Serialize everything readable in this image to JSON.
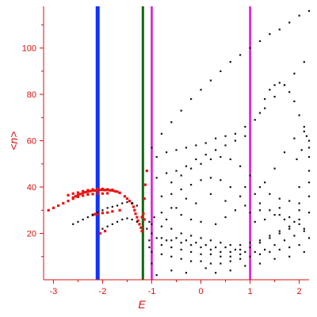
{
  "chart_data": {
    "type": "scatter",
    "title": "",
    "xlabel": "E",
    "ylabel": "<n>",
    "xlim": [
      -3.2,
      2.2
    ],
    "ylim": [
      0,
      118
    ],
    "x_ticks": [
      -3,
      -2,
      -1,
      0,
      1,
      2
    ],
    "x_tick_labels": [
      "-3",
      "-2",
      "-1",
      "0",
      "1",
      "2"
    ],
    "y_ticks": [
      20,
      40,
      60,
      80,
      100
    ],
    "y_tick_labels": [
      "20",
      "40",
      "60",
      "80",
      "100"
    ],
    "grid": false,
    "legend": "none",
    "colors": {
      "axis": "#dd1111",
      "ground_band": "#ee1111",
      "spectrum_points": "#111111",
      "line_blue": "#1133ff",
      "line_green": "#116611",
      "line_magenta": "#dd11dd"
    },
    "vertical_lines": [
      {
        "x": -2.1,
        "color": "#1133ff"
      },
      {
        "x": -1.18,
        "color": "#116611"
      },
      {
        "x": -1.0,
        "color": "#dd11dd"
      },
      {
        "x": 1.0,
        "color": "#dd11dd"
      }
    ],
    "series": [
      {
        "color": "#ee1111",
        "points": [
          [
            -3.1,
            30
          ],
          [
            -3.0,
            31
          ],
          [
            -2.9,
            32
          ],
          [
            -2.8,
            33
          ],
          [
            -2.7,
            34
          ],
          [
            -2.6,
            35
          ],
          [
            -2.55,
            36
          ],
          [
            -2.5,
            36.5
          ],
          [
            -2.45,
            37
          ],
          [
            -2.4,
            37.5
          ],
          [
            -2.35,
            37.8
          ],
          [
            -2.3,
            38
          ],
          [
            -2.25,
            38.3
          ],
          [
            -2.2,
            38.5
          ],
          [
            -2.15,
            38.5
          ],
          [
            -2.1,
            38.6
          ],
          [
            -2.05,
            38.8
          ],
          [
            -2.0,
            38.8
          ],
          [
            -1.95,
            38.7
          ],
          [
            -1.9,
            38.8
          ],
          [
            -1.85,
            38.6
          ],
          [
            -1.8,
            38.5
          ],
          [
            -1.75,
            38.2
          ],
          [
            -1.7,
            38
          ],
          [
            -1.65,
            37.5
          ],
          [
            -2.7,
            36.5
          ],
          [
            -2.6,
            37.2
          ],
          [
            -2.5,
            37.6
          ],
          [
            -2.4,
            38.2
          ],
          [
            -2.3,
            38.6
          ],
          [
            -2.2,
            39
          ],
          [
            -2.1,
            39.2
          ],
          [
            -2.0,
            39.2
          ],
          [
            -1.9,
            39
          ],
          [
            -1.8,
            38.8
          ],
          [
            -2.6,
            35.5
          ],
          [
            -2.5,
            35.8
          ],
          [
            -2.4,
            36.3
          ],
          [
            -2.3,
            36.8
          ],
          [
            -2.2,
            37
          ],
          [
            -2.1,
            37.2
          ],
          [
            -2.0,
            37.2
          ],
          [
            -1.9,
            37.3
          ],
          [
            -2.2,
            28
          ],
          [
            -2.15,
            28.3
          ],
          [
            -2.1,
            28.5
          ],
          [
            -2.0,
            28.8
          ],
          [
            -1.9,
            29
          ],
          [
            -1.8,
            29.5
          ],
          [
            -1.65,
            30
          ],
          [
            -1.55,
            36
          ],
          [
            -1.5,
            35
          ],
          [
            -1.45,
            34
          ],
          [
            -1.4,
            33
          ],
          [
            -1.37,
            31.5
          ],
          [
            -1.35,
            30
          ],
          [
            -1.33,
            28.5
          ],
          [
            -1.3,
            27
          ],
          [
            -1.28,
            25.5
          ],
          [
            -1.25,
            24
          ],
          [
            -1.22,
            22.5
          ],
          [
            -1.2,
            21
          ],
          [
            -2.05,
            20
          ],
          [
            -1.95,
            21
          ],
          [
            -1.15,
            35
          ],
          [
            -1.13,
            41
          ],
          [
            -1.1,
            47
          ],
          [
            -1.2,
            27
          ],
          [
            -1.17,
            28.5
          ],
          [
            -1.15,
            26
          ]
        ]
      },
      {
        "color": "#111111",
        "points": [
          [
            -2.6,
            24
          ],
          [
            -2.5,
            25
          ],
          [
            -2.4,
            26
          ],
          [
            -2.3,
            27
          ],
          [
            -2.2,
            28
          ],
          [
            -2.1,
            29
          ],
          [
            -2.0,
            30
          ],
          [
            -1.9,
            31
          ],
          [
            -1.8,
            31.5
          ],
          [
            -1.7,
            32
          ],
          [
            -1.6,
            33
          ],
          [
            -1.5,
            33.5
          ],
          [
            -1.4,
            33
          ],
          [
            -1.3,
            32
          ],
          [
            -2.0,
            22
          ],
          [
            -1.9,
            23
          ],
          [
            -1.8,
            24
          ],
          [
            -1.7,
            25
          ],
          [
            -1.6,
            26
          ],
          [
            -1.5,
            26.5
          ],
          [
            -1.4,
            26
          ],
          [
            -1.3,
            25
          ],
          [
            -1.0,
            57
          ],
          [
            -0.8,
            63
          ],
          [
            -0.6,
            68
          ],
          [
            -0.4,
            73
          ],
          [
            -0.2,
            78
          ],
          [
            0.0,
            82
          ],
          [
            0.2,
            86
          ],
          [
            0.4,
            90
          ],
          [
            0.6,
            94
          ],
          [
            0.8,
            97
          ],
          [
            1.0,
            100
          ],
          [
            1.2,
            103
          ],
          [
            1.4,
            106
          ],
          [
            1.6,
            108
          ],
          [
            1.8,
            111
          ],
          [
            2.0,
            114
          ],
          [
            2.2,
            116
          ],
          [
            -0.9,
            53
          ],
          [
            -0.7,
            55
          ],
          [
            -0.5,
            56
          ],
          [
            -0.3,
            57
          ],
          [
            -0.1,
            58
          ],
          [
            0.1,
            59
          ],
          [
            0.3,
            61
          ],
          [
            0.5,
            62
          ],
          [
            0.7,
            63
          ],
          [
            0.9,
            66
          ],
          [
            1.1,
            69
          ],
          [
            1.3,
            74
          ],
          [
            1.5,
            79
          ],
          [
            1.7,
            84
          ],
          [
            1.9,
            89
          ],
          [
            2.1,
            94
          ],
          [
            -0.9,
            44
          ],
          [
            -0.7,
            46
          ],
          [
            -0.5,
            47
          ],
          [
            -0.3,
            49
          ],
          [
            -0.1,
            52
          ],
          [
            0.1,
            54
          ],
          [
            0.3,
            56
          ],
          [
            0.5,
            58
          ],
          [
            0.7,
            60
          ],
          [
            0.9,
            62
          ],
          [
            1.2,
            72
          ],
          [
            1.3,
            78
          ],
          [
            1.4,
            82
          ],
          [
            1.5,
            84
          ],
          [
            1.6,
            85
          ],
          [
            1.7,
            84
          ],
          [
            1.8,
            81
          ],
          [
            1.9,
            77
          ],
          [
            2.0,
            71
          ],
          [
            2.1,
            64
          ],
          [
            2.2,
            57
          ],
          [
            -0.6,
            42
          ],
          [
            -0.4,
            45
          ],
          [
            -0.2,
            48
          ],
          [
            0.0,
            50
          ],
          [
            0.2,
            52
          ],
          [
            0.4,
            53
          ],
          [
            0.6,
            52
          ],
          [
            0.8,
            49
          ],
          [
            1.0,
            45
          ],
          [
            1.2,
            40
          ],
          [
            1.4,
            37
          ],
          [
            1.6,
            35
          ],
          [
            1.8,
            34
          ],
          [
            2.0,
            33
          ],
          [
            -0.8,
            36
          ],
          [
            -0.6,
            37
          ],
          [
            -0.4,
            39
          ],
          [
            -0.2,
            41
          ],
          [
            0.0,
            43
          ],
          [
            0.2,
            44
          ],
          [
            0.4,
            43
          ],
          [
            0.6,
            40
          ],
          [
            0.8,
            36
          ],
          [
            1.2,
            33
          ],
          [
            1.4,
            30
          ],
          [
            1.6,
            28
          ],
          [
            1.8,
            27
          ],
          [
            2.0,
            30
          ],
          [
            2.2,
            36
          ],
          [
            -1.0,
            24
          ],
          [
            -0.8,
            23
          ],
          [
            -0.6,
            22
          ],
          [
            -0.4,
            20
          ],
          [
            -0.2,
            19
          ],
          [
            0.0,
            18
          ],
          [
            0.2,
            17
          ],
          [
            0.4,
            16
          ],
          [
            0.6,
            15
          ],
          [
            0.8,
            15
          ],
          [
            1.0,
            16
          ],
          [
            1.2,
            17
          ],
          [
            1.4,
            19
          ],
          [
            1.6,
            21
          ],
          [
            1.8,
            23
          ],
          [
            2.0,
            26
          ],
          [
            2.2,
            29
          ],
          [
            -1.0,
            20
          ],
          [
            -0.8,
            18
          ],
          [
            -0.6,
            17
          ],
          [
            -0.4,
            16
          ],
          [
            -0.2,
            15
          ],
          [
            0.0,
            14
          ],
          [
            0.2,
            13
          ],
          [
            0.4,
            12
          ],
          [
            0.6,
            12
          ],
          [
            0.8,
            13
          ],
          [
            1.0,
            14
          ],
          [
            1.2,
            16
          ],
          [
            1.4,
            18
          ],
          [
            1.6,
            20
          ],
          [
            1.8,
            22
          ],
          [
            2.0,
            24
          ],
          [
            -0.9,
            18
          ],
          [
            -0.7,
            17
          ],
          [
            -0.5,
            18
          ],
          [
            -0.3,
            17
          ],
          [
            -0.1,
            16
          ],
          [
            0.1,
            15
          ],
          [
            0.3,
            14
          ],
          [
            0.5,
            14
          ],
          [
            0.7,
            13
          ],
          [
            0.9,
            12
          ],
          [
            1.1,
            12
          ],
          [
            1.3,
            13
          ],
          [
            1.5,
            15
          ],
          [
            1.7,
            17
          ],
          [
            1.9,
            19
          ],
          [
            2.1,
            21
          ],
          [
            -0.8,
            15
          ],
          [
            -0.6,
            14
          ],
          [
            -0.4,
            13
          ],
          [
            -0.2,
            12
          ],
          [
            0.0,
            11
          ],
          [
            0.2,
            11
          ],
          [
            0.4,
            10
          ],
          [
            0.6,
            10
          ],
          [
            0.8,
            11
          ],
          [
            -1.0,
            12
          ],
          [
            -0.8,
            11
          ],
          [
            -0.6,
            10
          ],
          [
            -0.4,
            9
          ],
          [
            -0.2,
            8
          ],
          [
            0.0,
            8
          ],
          [
            0.2,
            7
          ],
          [
            0.4,
            7
          ],
          [
            0.6,
            8
          ],
          [
            0.8,
            9
          ],
          [
            1.0,
            10
          ],
          [
            1.2,
            11
          ],
          [
            1.4,
            12
          ],
          [
            1.6,
            13
          ],
          [
            1.8,
            14
          ],
          [
            2.0,
            15
          ],
          [
            2.2,
            18
          ],
          [
            -1.0,
            7
          ],
          [
            -0.9,
            2
          ],
          [
            -0.6,
            4
          ],
          [
            -0.3,
            3
          ],
          [
            0.1,
            5
          ],
          [
            0.3,
            3
          ],
          [
            0.6,
            4
          ],
          [
            0.9,
            6
          ],
          [
            1.2,
            7
          ],
          [
            1.5,
            9
          ],
          [
            1.8,
            10
          ],
          [
            2.1,
            12
          ],
          [
            -0.8,
            29
          ],
          [
            -0.6,
            31
          ],
          [
            -0.4,
            28
          ],
          [
            -0.2,
            26
          ],
          [
            0.0,
            25
          ],
          [
            0.3,
            24
          ],
          [
            0.5,
            27
          ],
          [
            0.7,
            30
          ],
          [
            0.9,
            32
          ],
          [
            1.1,
            37
          ],
          [
            1.3,
            42
          ],
          [
            1.5,
            48
          ],
          [
            1.7,
            55
          ],
          [
            1.9,
            61
          ],
          [
            2.1,
            66
          ],
          [
            2.2,
            53
          ],
          [
            2.2,
            47
          ],
          [
            2.2,
            42
          ],
          [
            2.2,
            60
          ],
          [
            1.95,
            52
          ],
          [
            2.05,
            56
          ],
          [
            2.15,
            62
          ],
          [
            0.9,
            40
          ],
          [
            0.5,
            34
          ],
          [
            0.2,
            37
          ],
          [
            -0.1,
            33
          ],
          [
            -0.3,
            35
          ],
          [
            -0.5,
            31
          ],
          [
            -0.7,
            26
          ],
          [
            -0.95,
            27
          ],
          [
            -1.05,
            25
          ],
          [
            -1.1,
            22
          ],
          [
            -1.05,
            17
          ],
          [
            -1.05,
            14
          ],
          [
            1.1,
            25
          ],
          [
            1.3,
            26
          ],
          [
            1.5,
            28
          ],
          [
            1.7,
            26
          ],
          [
            1.9,
            25
          ],
          [
            2.1,
            22
          ],
          [
            1.0,
            29
          ],
          [
            1.2,
            30
          ],
          [
            1.6,
            31
          ],
          [
            2.0,
            40
          ]
        ]
      }
    ]
  }
}
